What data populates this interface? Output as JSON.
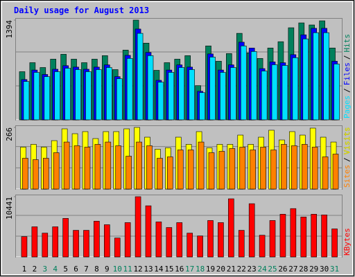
{
  "title": "Daily usage for August 2013",
  "legend_separator": "/",
  "chart_data": [
    {
      "type": "bar",
      "ylim": [
        0,
        1394
      ],
      "yticks": [
        1394
      ],
      "series": [
        {
          "name": "Pages",
          "color": "#00e0ff",
          "values": [
            536,
            663,
            604,
            673,
            721,
            702,
            673,
            702,
            731,
            575,
            858,
            1209,
            897,
            526,
            663,
            731,
            702,
            380,
            877,
            663,
            731,
            1033,
            955,
            682,
            770,
            760,
            868,
            1131,
            1218,
            1218,
            780
          ]
        },
        {
          "name": "Files",
          "color": "#0000ff",
          "values": [
            563,
            696,
            634,
            707,
            757,
            737,
            707,
            737,
            768,
            604,
            901,
            1269,
            942,
            552,
            696,
            768,
            737,
            399,
            921,
            696,
            768,
            1085,
            1003,
            716,
            809,
            798,
            911,
            1188,
            1279,
            1279,
            819
          ]
        },
        {
          "name": "Hits",
          "color": "#00805c",
          "values": [
            673,
            799,
            731,
            848,
            916,
            848,
            799,
            848,
            897,
            702,
            975,
            1394,
            1072,
            692,
            799,
            848,
            897,
            478,
            1033,
            819,
            926,
            1209,
            936,
            858,
            1004,
            1092,
            1287,
            1355,
            1326,
            1384,
            1004
          ]
        }
      ]
    },
    {
      "type": "bar",
      "ylim": [
        0,
        266
      ],
      "yticks": [
        266
      ],
      "series": [
        {
          "name": "Sites",
          "color": "#ff8000",
          "values": [
            133,
            127,
            133,
            157,
            203,
            187,
            181,
            193,
            203,
            187,
            142,
            203,
            187,
            133,
            139,
            169,
            169,
            203,
            157,
            163,
            175,
            181,
            169,
            181,
            169,
            193,
            187,
            193,
            181,
            139,
            151
          ]
        },
        {
          "name": "Visits",
          "color": "#ffff00",
          "values": [
            181,
            193,
            181,
            209,
            260,
            239,
            248,
            218,
            248,
            248,
            260,
            266,
            224,
            172,
            178,
            224,
            193,
            248,
            178,
            193,
            193,
            233,
            193,
            224,
            254,
            212,
            248,
            233,
            263,
            224,
            203
          ]
        }
      ]
    },
    {
      "type": "bar",
      "ylim": [
        0,
        10441
      ],
      "yticks": [
        10441
      ],
      "categories": [
        "1",
        "2",
        "3",
        "4",
        "5",
        "6",
        "7",
        "8",
        "9",
        "10",
        "11",
        "12",
        "13",
        "14",
        "15",
        "16",
        "17",
        "18",
        "19",
        "20",
        "21",
        "22",
        "23",
        "24",
        "25",
        "26",
        "27",
        "28",
        "29",
        "30",
        "31"
      ],
      "category_colors": [
        "#000000",
        "#000000",
        "#00805c",
        "#00805c",
        "#000000",
        "#000000",
        "#000000",
        "#000000",
        "#000000",
        "#00805c",
        "#00805c",
        "#000000",
        "#000000",
        "#000000",
        "#000000",
        "#000000",
        "#00805c",
        "#00805c",
        "#000000",
        "#000000",
        "#000000",
        "#000000",
        "#000000",
        "#00805c",
        "#00805c",
        "#000000",
        "#000000",
        "#000000",
        "#000000",
        "#000000",
        "#00805c"
      ],
      "series": [
        {
          "name": "KBytes",
          "color": "#ff0000",
          "values": [
            3521,
            5221,
            4128,
            5221,
            6678,
            4614,
            4614,
            6192,
            5585,
            3278,
            5949,
            10441,
            8863,
            6071,
            5100,
            5949,
            4128,
            3642,
            6313,
            5949,
            10077,
            4614,
            9227,
            3764,
            6313,
            7406,
            8378,
            6921,
            7406,
            7285,
            4857
          ]
        }
      ]
    }
  ]
}
